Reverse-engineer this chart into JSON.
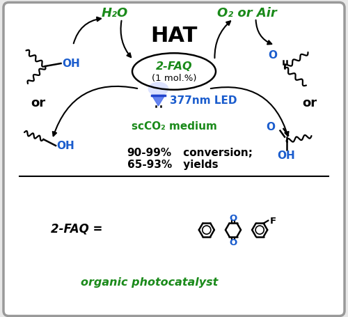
{
  "bg_color": "#e8e8e8",
  "box_color": "#ffffff",
  "box_border": "#999999",
  "black": "#000000",
  "blue": "#1a5ccd",
  "dark_green": "#1a8a1a",
  "hat_text": "HAT",
  "h2o_text": "H₂O",
  "o2_text": "O₂ or Air",
  "faq_label": "2-FAQ",
  "faq_mol": "(1 mol.%)",
  "led_text": "377nm LED",
  "medium_text": "scCO₂ medium",
  "conversion_line1": "90-99% conversion;",
  "conversion_line2": "65-93% yields",
  "bottom_label": "2-FAQ =",
  "photocatalyst": "organic photocatalyst",
  "or_text": "or"
}
